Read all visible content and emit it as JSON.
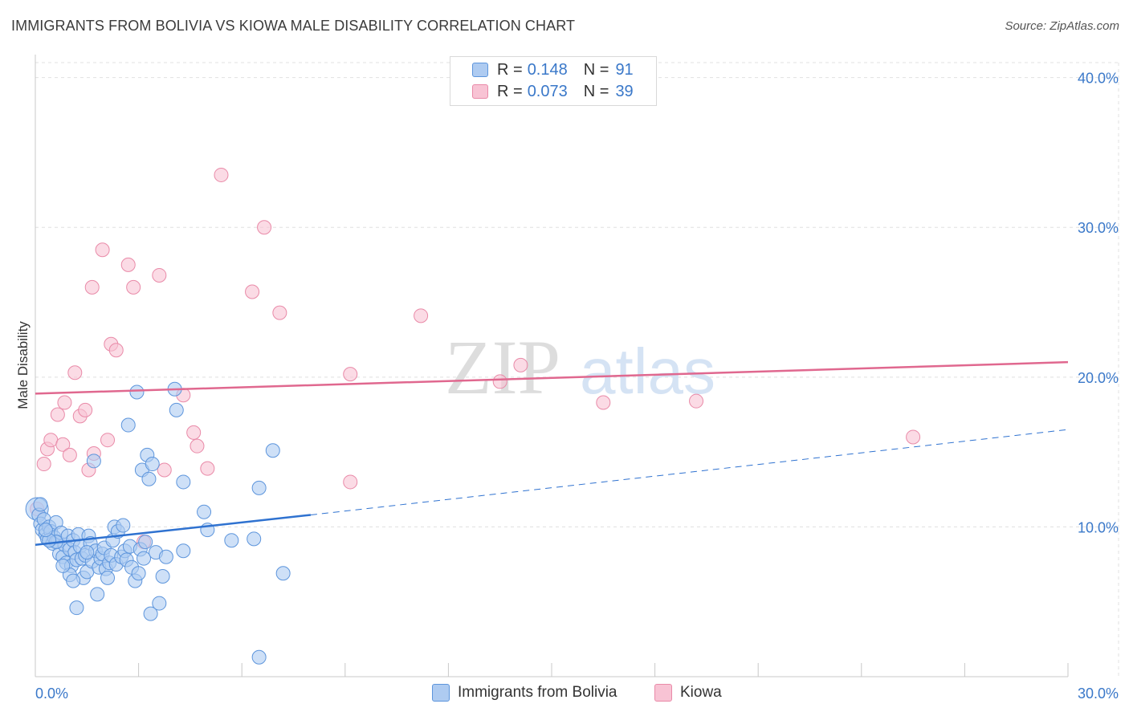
{
  "header": {
    "title": "IMMIGRANTS FROM BOLIVIA VS KIOWA MALE DISABILITY CORRELATION CHART",
    "source": "Source: ZipAtlas.com"
  },
  "watermark": {
    "zip": "ZIP",
    "atlas": "atlas"
  },
  "legend_top": {
    "rows": [
      {
        "r_label": "R =",
        "r_value": "0.148",
        "n_label": "N =",
        "n_value": "91"
      },
      {
        "r_label": "R =",
        "r_value": "0.073",
        "n_label": "N =",
        "n_value": "39"
      }
    ]
  },
  "legend_bottom": {
    "items": [
      {
        "label": "Immigrants from Bolivia"
      },
      {
        "label": "Kiowa"
      }
    ]
  },
  "colors": {
    "blue_fill": "#aecbf1",
    "blue_stroke": "#5d95dc",
    "blue_line": "#2f72d0",
    "pink_fill": "#f8c3d4",
    "pink_stroke": "#e98aa8",
    "pink_line": "#e0688f",
    "axis_text": "#3a78c9",
    "grid": "#e0e0e0"
  },
  "chart_data": {
    "type": "scatter",
    "title": "IMMIGRANTS FROM BOLIVIA VS KIOWA MALE DISABILITY CORRELATION CHART",
    "xlabel": "",
    "ylabel": "Male Disability",
    "xlim": [
      0,
      30
    ],
    "ylim": [
      0,
      41
    ],
    "x_tick_labels": [
      "0.0%",
      "30.0%"
    ],
    "y_ticks": [
      10,
      20,
      30,
      40
    ],
    "y_tick_labels": [
      "10.0%",
      "20.0%",
      "30.0%",
      "40.0%"
    ],
    "grid": true,
    "series": [
      {
        "name": "Immigrants from Bolivia",
        "r": 0.148,
        "n": 91,
        "trend": {
          "x0": 0,
          "y0": 8.8,
          "x1": 8,
          "y1": 10.8,
          "dash_x1": 30,
          "dash_y1": 16.5
        },
        "points": [
          [
            0.05,
            11.2
          ],
          [
            0.1,
            10.8
          ],
          [
            0.15,
            10.2
          ],
          [
            0.2,
            9.8
          ],
          [
            0.25,
            10.5
          ],
          [
            0.3,
            9.5
          ],
          [
            0.35,
            9.2
          ],
          [
            0.4,
            10.0
          ],
          [
            0.45,
            9.7
          ],
          [
            0.5,
            8.9
          ],
          [
            0.55,
            9.3
          ],
          [
            0.6,
            10.3
          ],
          [
            0.65,
            9.0
          ],
          [
            0.7,
            8.2
          ],
          [
            0.75,
            9.6
          ],
          [
            0.8,
            8.0
          ],
          [
            0.85,
            8.8
          ],
          [
            0.9,
            7.6
          ],
          [
            0.95,
            9.4
          ],
          [
            1.0,
            8.5
          ],
          [
            1.05,
            7.4
          ],
          [
            1.1,
            9.1
          ],
          [
            1.15,
            8.3
          ],
          [
            1.2,
            7.8
          ],
          [
            1.25,
            9.5
          ],
          [
            1.3,
            8.7
          ],
          [
            1.35,
            7.9
          ],
          [
            1.4,
            6.6
          ],
          [
            1.45,
            8.1
          ],
          [
            1.5,
            7.0
          ],
          [
            1.55,
            9.4
          ],
          [
            1.6,
            8.9
          ],
          [
            1.65,
            7.7
          ],
          [
            1.7,
            14.4
          ],
          [
            1.75,
            8.4
          ],
          [
            1.8,
            5.5
          ],
          [
            1.85,
            7.3
          ],
          [
            1.9,
            7.9
          ],
          [
            1.95,
            8.2
          ],
          [
            2.0,
            8.6
          ],
          [
            2.05,
            7.2
          ],
          [
            2.1,
            6.6
          ],
          [
            2.15,
            7.6
          ],
          [
            2.2,
            8.1
          ],
          [
            2.25,
            9.1
          ],
          [
            2.3,
            10.0
          ],
          [
            2.35,
            7.5
          ],
          [
            2.4,
            9.7
          ],
          [
            2.5,
            8.0
          ],
          [
            2.55,
            10.1
          ],
          [
            2.6,
            8.4
          ],
          [
            2.65,
            7.8
          ],
          [
            2.75,
            8.7
          ],
          [
            2.8,
            7.3
          ],
          [
            2.9,
            6.4
          ],
          [
            2.95,
            19.0
          ],
          [
            3.0,
            6.9
          ],
          [
            3.05,
            8.5
          ],
          [
            3.1,
            13.8
          ],
          [
            3.15,
            7.9
          ],
          [
            3.2,
            9.0
          ],
          [
            3.25,
            14.8
          ],
          [
            3.3,
            13.2
          ],
          [
            3.35,
            4.2
          ],
          [
            3.4,
            14.2
          ],
          [
            3.5,
            8.3
          ],
          [
            3.6,
            4.9
          ],
          [
            3.7,
            6.7
          ],
          [
            3.8,
            8.0
          ],
          [
            4.05,
            19.2
          ],
          [
            4.1,
            17.8
          ],
          [
            4.3,
            13.0
          ],
          [
            4.3,
            8.4
          ],
          [
            4.9,
            11.0
          ],
          [
            5.0,
            9.8
          ],
          [
            5.7,
            9.1
          ],
          [
            6.35,
            9.2
          ],
          [
            6.5,
            12.6
          ],
          [
            6.9,
            15.1
          ],
          [
            7.2,
            6.9
          ],
          [
            6.5,
            1.3
          ],
          [
            2.7,
            16.8
          ],
          [
            0.6,
            9.0
          ],
          [
            1.0,
            6.8
          ],
          [
            0.4,
            9.1
          ],
          [
            0.3,
            9.8
          ],
          [
            1.1,
            6.4
          ],
          [
            1.2,
            4.6
          ],
          [
            0.8,
            7.4
          ],
          [
            1.5,
            8.3
          ],
          [
            0.15,
            11.5
          ]
        ]
      },
      {
        "name": "Kiowa",
        "r": 0.073,
        "n": 39,
        "trend": {
          "x0": 0,
          "y0": 18.9,
          "x1": 30,
          "y1": 21.0
        },
        "points": [
          [
            0.05,
            11.2
          ],
          [
            0.25,
            14.2
          ],
          [
            0.35,
            15.2
          ],
          [
            0.45,
            15.8
          ],
          [
            0.65,
            17.5
          ],
          [
            0.8,
            15.5
          ],
          [
            0.85,
            18.3
          ],
          [
            1.0,
            14.8
          ],
          [
            1.15,
            20.3
          ],
          [
            1.3,
            17.4
          ],
          [
            1.45,
            17.8
          ],
          [
            1.55,
            13.8
          ],
          [
            1.7,
            14.9
          ],
          [
            1.65,
            26.0
          ],
          [
            1.95,
            28.5
          ],
          [
            2.1,
            15.8
          ],
          [
            2.2,
            22.2
          ],
          [
            2.35,
            21.8
          ],
          [
            2.7,
            27.5
          ],
          [
            2.85,
            26.0
          ],
          [
            3.15,
            9.0
          ],
          [
            3.6,
            26.8
          ],
          [
            3.75,
            13.8
          ],
          [
            4.3,
            18.8
          ],
          [
            4.6,
            16.3
          ],
          [
            4.7,
            15.4
          ],
          [
            5.0,
            13.9
          ],
          [
            5.4,
            33.5
          ],
          [
            6.3,
            25.7
          ],
          [
            6.65,
            30.0
          ],
          [
            7.1,
            24.3
          ],
          [
            9.15,
            20.2
          ],
          [
            9.15,
            13.0
          ],
          [
            11.2,
            24.1
          ],
          [
            13.5,
            19.7
          ],
          [
            14.1,
            20.8
          ],
          [
            16.5,
            18.3
          ],
          [
            19.2,
            18.4
          ],
          [
            25.5,
            16.0
          ]
        ]
      }
    ]
  }
}
